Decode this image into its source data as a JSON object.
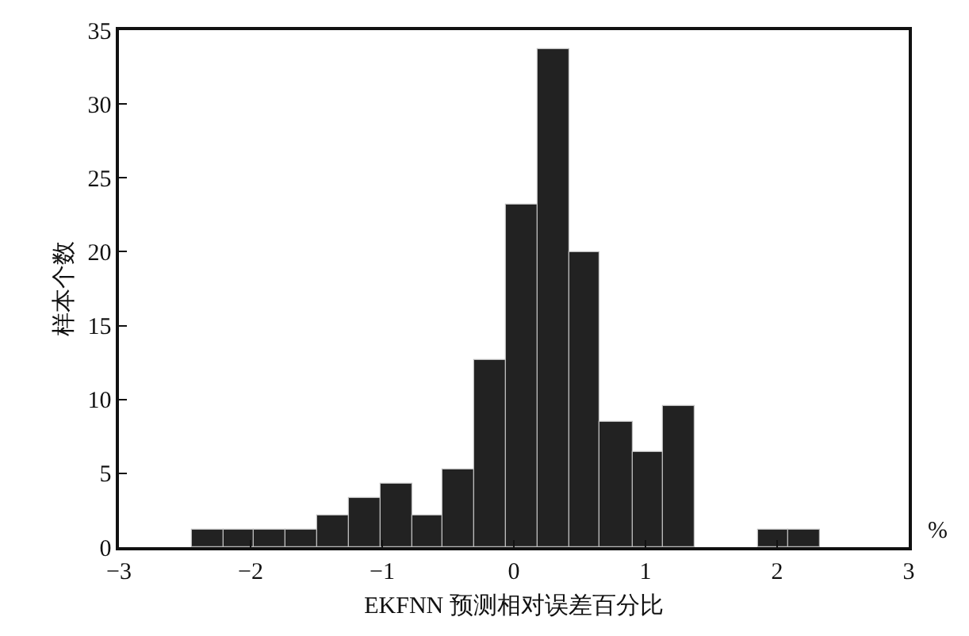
{
  "chart_data": {
    "type": "histogram",
    "xlabel": "EKFNN 预测相对误差百分比",
    "ylabel": "样本个数",
    "annotations": [
      "%"
    ],
    "bins": [
      -2.44,
      -2.2,
      -1.97,
      -1.73,
      -1.49,
      -1.25,
      -1.01,
      -0.77,
      -0.54,
      -0.3,
      -0.06,
      0.18,
      0.42,
      0.65,
      0.9,
      1.13,
      1.37,
      1.85,
      2.09,
      2.32
    ],
    "values": [
      1.2,
      1.2,
      1.2,
      1.2,
      2.2,
      3.3,
      4.3,
      2.2,
      5.3,
      12.7,
      23.2,
      33.7,
      20.0,
      8.5,
      6.4,
      9.6,
      0,
      1.2,
      1.2
    ],
    "color": "#222222",
    "xlim": [
      -3,
      3
    ],
    "xticks": [
      {
        "value": -3,
        "label": "−3"
      },
      {
        "value": -2,
        "label": "−2"
      },
      {
        "value": -1,
        "label": "−1"
      },
      0,
      1,
      2,
      3
    ],
    "ylim": [
      0,
      35
    ],
    "yticks": [
      0,
      5,
      10,
      15,
      20,
      25,
      30,
      35
    ]
  }
}
